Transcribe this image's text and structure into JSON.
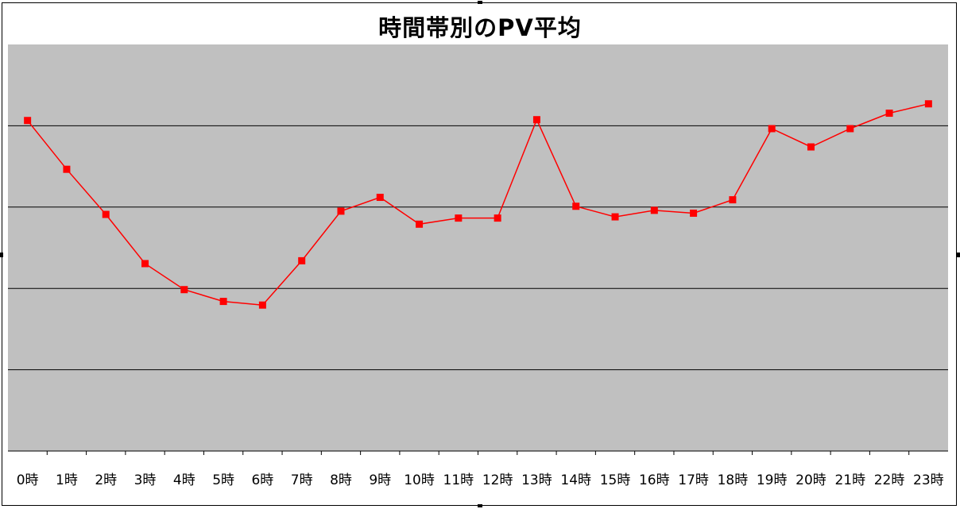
{
  "chart_data": {
    "type": "line",
    "title": "時間帯別のPV平均",
    "categories": [
      "0時",
      "1時",
      "2時",
      "3時",
      "4時",
      "5時",
      "6時",
      "7時",
      "8時",
      "9時",
      "10時",
      "11時",
      "12時",
      "13時",
      "14時",
      "15時",
      "16時",
      "17時",
      "18時",
      "19時",
      "20時",
      "21時",
      "22時",
      "23時"
    ],
    "series": [
      {
        "values": [
          81.3,
          69.3,
          58.2,
          46.1,
          39.7,
          36.8,
          35.9,
          46.8,
          59.0,
          62.4,
          55.8,
          57.3,
          57.3,
          81.5,
          60.2,
          57.6,
          59.2,
          58.5,
          61.8,
          79.3,
          74.8,
          79.3,
          83.1,
          85.4
        ],
        "color": "#ff0000"
      }
    ],
    "ylim": [
      0,
      100
    ],
    "y_gridlines": [
      20,
      40,
      60,
      80
    ],
    "grid": true,
    "y_tick_labels": false,
    "legend": "none",
    "xlabel": "",
    "ylabel": "",
    "plot_background": "#c0c0c0",
    "line_color": "#ff0000",
    "marker": "square"
  }
}
